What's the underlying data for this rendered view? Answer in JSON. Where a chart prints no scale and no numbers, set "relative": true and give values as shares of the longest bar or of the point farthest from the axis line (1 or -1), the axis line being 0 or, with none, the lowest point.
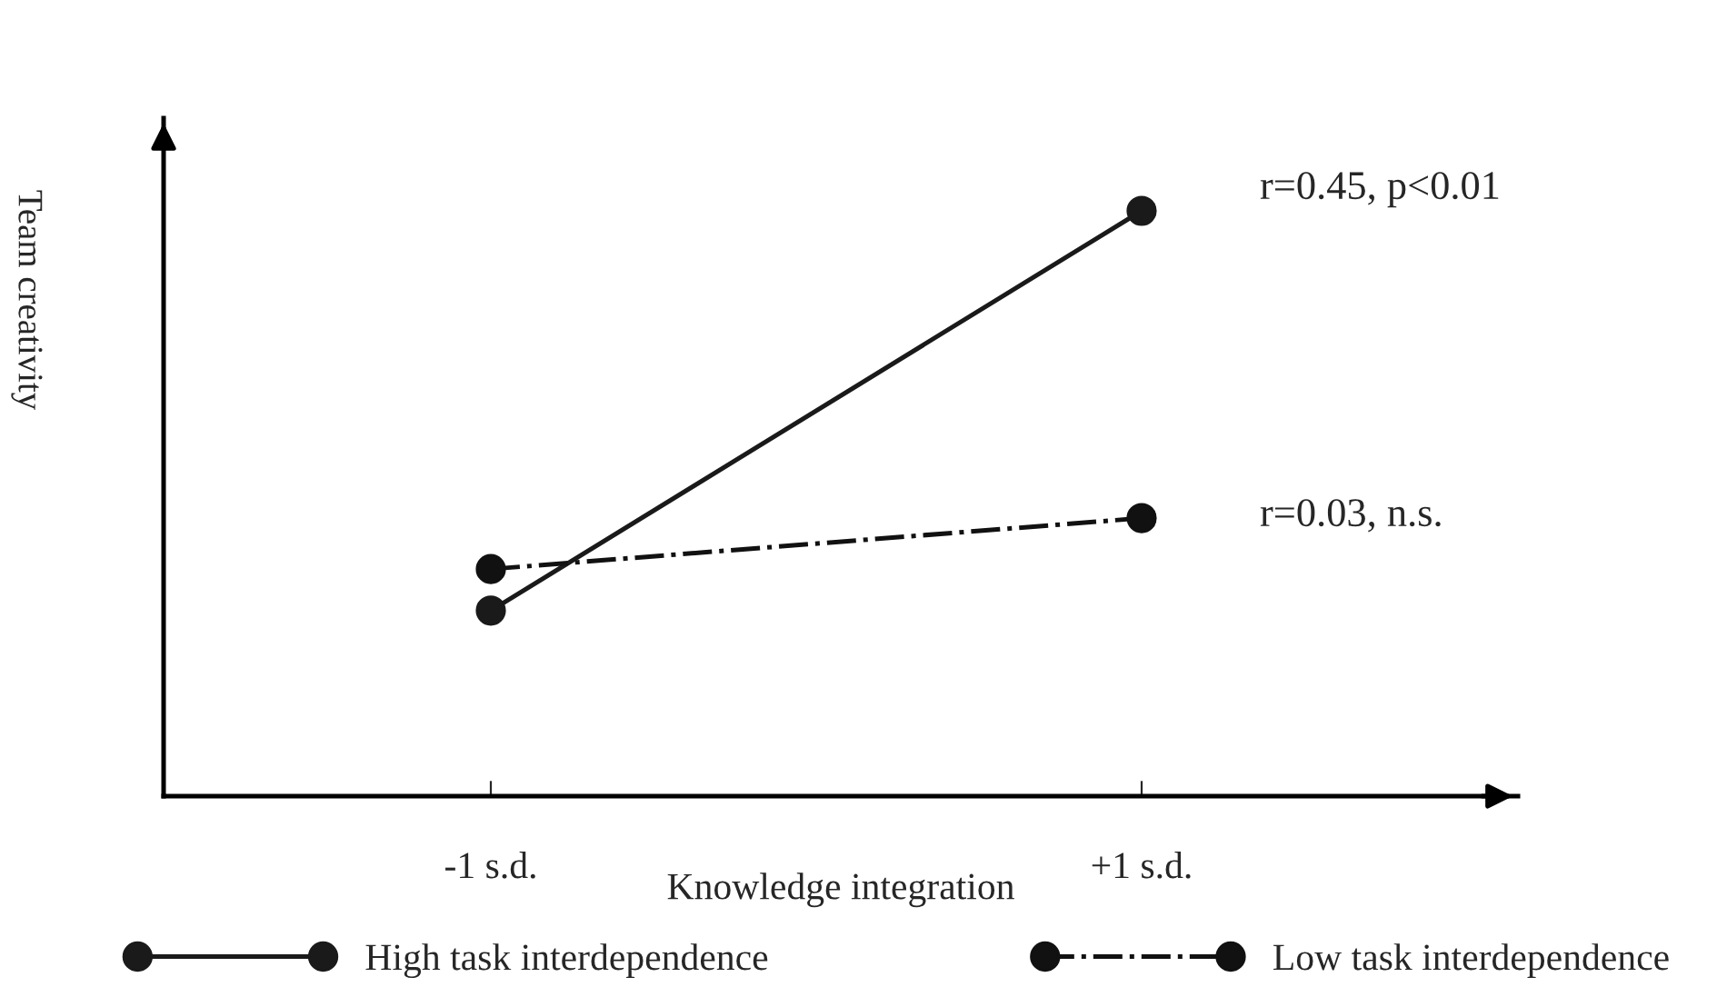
{
  "chart_data": {
    "type": "line",
    "relative": true,
    "categories": [
      "-1 s.d.",
      "+1 s.d."
    ],
    "xlabel": "Knowledge integration",
    "ylabel": "Team creativity",
    "series": [
      {
        "name": "High task interdependence",
        "color": "#1a1a1a",
        "values": [
          0.317,
          1
        ],
        "line_style": "solid"
      },
      {
        "name": "Low task interdependence",
        "color": "#111111",
        "values": [
          0.388,
          0.475
        ],
        "line_style": "dashdot"
      }
    ],
    "marker": "circle",
    "legend": "bottom",
    "grid": false,
    "annotations": [
      "r=0.45, p<0.01",
      "r=0.03, n.s."
    ]
  }
}
